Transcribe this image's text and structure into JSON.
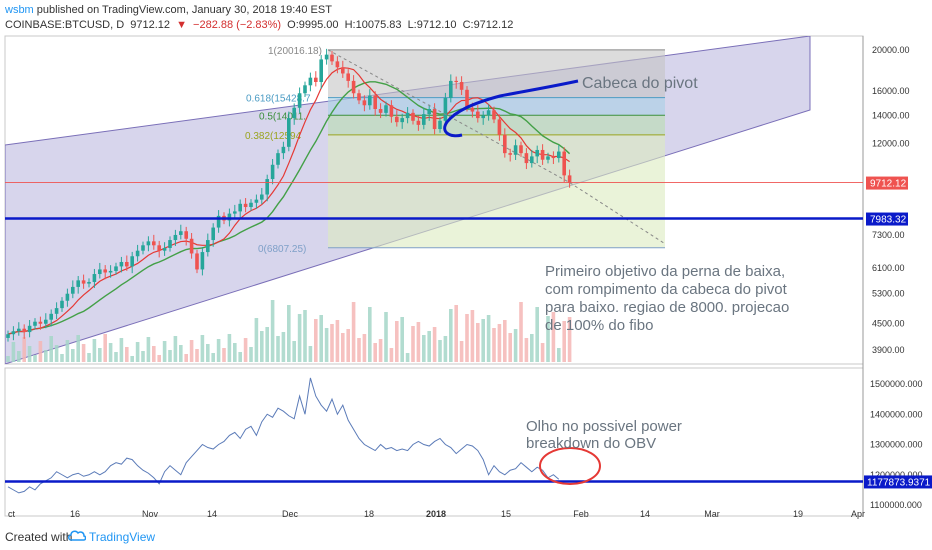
{
  "header": {
    "user": "wsbm",
    "published": "published on TradingView.com, January 30, 2018 19:40 EST",
    "symbol": "COINBASE:BTCUSD, D",
    "price": "9712.12",
    "change": "−282.88 (−2.83%)",
    "open": "O:9995.00",
    "high": "H:10075.83",
    "low": "L:9712.10",
    "close": "C:9712.12"
  },
  "footer": {
    "created_with": "Created with",
    "brand": "TradingView"
  },
  "chart_data": [
    {
      "type": "candlestick",
      "title": "",
      "y_scale": "log",
      "ylim": [
        3500,
        21500
      ],
      "y_ticks": [
        "20000.00",
        "16000.00",
        "14000.00",
        "12000.00",
        "7300.00",
        "6100.00",
        "5300.00",
        "4500.00",
        "3900.00"
      ],
      "y_tick_values": [
        20000,
        16000,
        14000,
        12000,
        7300,
        6100,
        5300,
        4500,
        3900
      ],
      "x_ticks": [
        "ct",
        "16",
        "Nov",
        "14",
        "Dec",
        "18",
        "2018",
        "15",
        "Feb",
        "14",
        "Mar",
        "19",
        "Apr"
      ],
      "price_label": "9712.12",
      "horizontal_line_label": "7983.32",
      "horizontal_line_value": 7983.32,
      "fib_levels": [
        {
          "label": "1(20016.18)",
          "value": 20016.18
        },
        {
          "label": "0.618(15428.7",
          "value": 15428.7
        },
        {
          "label": "0.5(14011.",
          "value": 14011
        },
        {
          "label": "0.382(12594",
          "value": 12594
        },
        {
          "label": "0(6807.25)",
          "value": 6807.25
        }
      ],
      "annotations": [
        "Cabeca do pivot",
        "Primeiro objetivo da perna de baixa,",
        "com rompimento da cabeca do pivot",
        "para baixo. regiao de 8000. projecao",
        "de 100% do fibo"
      ],
      "closes": [
        4250,
        4320,
        4380,
        4300,
        4450,
        4550,
        4500,
        4600,
        4750,
        4900,
        5100,
        5300,
        5500,
        5700,
        5600,
        5650,
        5900,
        6050,
        5950,
        6000,
        6150,
        6300,
        6150,
        6500,
        6700,
        6900,
        7050,
        6900,
        6700,
        6800,
        7100,
        7300,
        7450,
        7150,
        6600,
        6050,
        6650,
        7100,
        7600,
        8100,
        7900,
        8200,
        8300,
        8650,
        8500,
        8700,
        8850,
        9100,
        9900,
        10700,
        11400,
        11800,
        13800,
        14600,
        15800,
        16500,
        17200,
        16800,
        19000,
        19500,
        18800,
        18200,
        17600,
        16900,
        15800,
        15200,
        14800,
        15600,
        14500,
        14200,
        14800,
        13900,
        13500,
        13800,
        14200,
        13600,
        13300,
        14100,
        14500,
        13000,
        13600,
        15400,
        16900,
        16800,
        16100,
        14600,
        14300,
        13800,
        14000,
        14400,
        13700,
        12600,
        11400,
        11300,
        11900,
        11400,
        10800,
        11200,
        11600,
        11000,
        11200,
        11100,
        11500,
        10100,
        9712
      ],
      "vol": [
        {
          "label": "",
          "values": []
        }
      ]
    },
    {
      "type": "line",
      "title": "",
      "name_note": "",
      "y_ticks": [
        "1500000.000",
        "1400000.000",
        "1300000.000",
        "1200000.000",
        "1100000.000"
      ],
      "y_tick_values": [
        1500000,
        1400000,
        1300000,
        1200000,
        1100000
      ],
      "ylim": [
        1085000,
        1530000
      ],
      "level_label": "1177873.9371",
      "level_value": 1177873.9371,
      "annotations": [
        "Olho no possivel power",
        "breakdown do OBV"
      ],
      "values": [
        1160000,
        1150000,
        1140000,
        1145000,
        1160000,
        1150000,
        1170000,
        1180000,
        1190000,
        1210000,
        1200000,
        1190000,
        1200000,
        1205000,
        1195000,
        1200000,
        1210000,
        1200000,
        1210000,
        1230000,
        1240000,
        1235000,
        1255000,
        1250000,
        1230000,
        1215000,
        1205000,
        1190000,
        1170000,
        1210000,
        1230000,
        1215000,
        1200000,
        1240000,
        1260000,
        1280000,
        1300000,
        1290000,
        1285000,
        1300000,
        1310000,
        1330000,
        1340000,
        1320000,
        1350000,
        1360000,
        1330000,
        1375000,
        1400000,
        1390000,
        1420000,
        1410000,
        1395000,
        1385000,
        1460000,
        1400000,
        1520000,
        1460000,
        1430000,
        1410000,
        1450000,
        1400000,
        1430000,
        1380000,
        1350000,
        1320000,
        1300000,
        1290000,
        1280000,
        1300000,
        1285000,
        1290000,
        1280000,
        1285000,
        1280000,
        1300000,
        1310000,
        1300000,
        1295000,
        1310000,
        1320000,
        1300000,
        1290000,
        1270000,
        1285000,
        1300000,
        1295000,
        1280000,
        1250000,
        1200000,
        1230000,
        1210000,
        1200000,
        1215000,
        1220000,
        1240000,
        1225000,
        1210000,
        1225000,
        1215000,
        1190000,
        1200000,
        1185000
      ]
    }
  ],
  "colors": {
    "up": "#26a69a",
    "down": "#ef5350",
    "blue_line": "#0a1ac9",
    "channel_fill": "#b7b3dd",
    "fib_zone": "#d7ecc2",
    "ma_fast": "#e53935",
    "ma_slow": "#43a047",
    "obv_line": "#5b7bb8"
  }
}
